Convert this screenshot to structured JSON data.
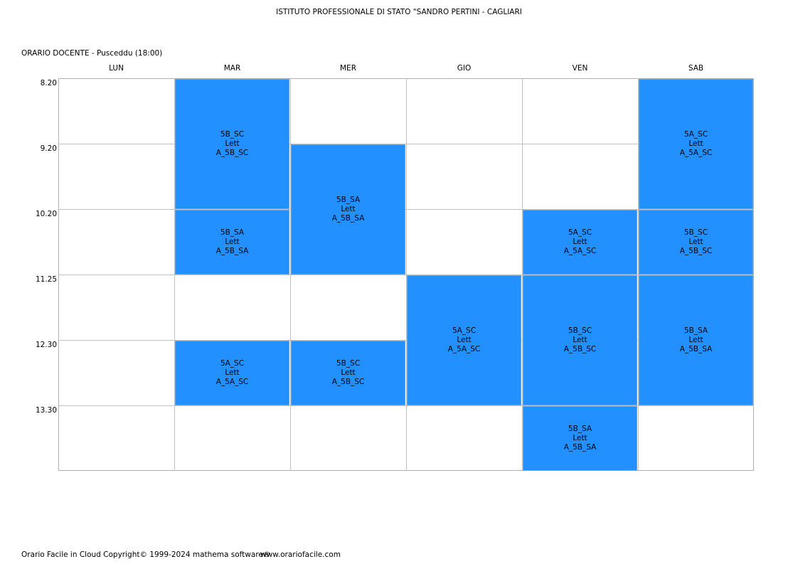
{
  "header": {
    "school": "ISTITUTO PROFESSIONALE DI STATO \"SANDRO PERTINI - CAGLIARI",
    "title": "ORARIO DOCENTE   -   Pusceddu  (18:00)"
  },
  "days": [
    "LUN",
    "MAR",
    "MER",
    "GIO",
    "VEN",
    "SAB"
  ],
  "times": [
    "8.20",
    "9.20",
    "10.20",
    "11.25",
    "12.30",
    "13.30"
  ],
  "lessons": [
    {
      "day": 1,
      "start": 0,
      "span": 2,
      "class": "5B_SC",
      "subject": "Lett",
      "room": "A_5B_SC"
    },
    {
      "day": 1,
      "start": 2,
      "span": 1,
      "class": "5B_SA",
      "subject": "Lett",
      "room": "A_5B_SA"
    },
    {
      "day": 1,
      "start": 4,
      "span": 1,
      "class": "5A_SC",
      "subject": "Lett",
      "room": "A_5A_SC"
    },
    {
      "day": 2,
      "start": 1,
      "span": 2,
      "class": "5B_SA",
      "subject": "Lett",
      "room": "A_5B_SA"
    },
    {
      "day": 2,
      "start": 4,
      "span": 1,
      "class": "5B_SC",
      "subject": "Lett",
      "room": "A_5B_SC"
    },
    {
      "day": 3,
      "start": 3,
      "span": 2,
      "class": "5A_SC",
      "subject": "Lett",
      "room": "A_5A_SC"
    },
    {
      "day": 4,
      "start": 2,
      "span": 1,
      "class": "5A_SC",
      "subject": "Lett",
      "room": "A_5A_SC"
    },
    {
      "day": 4,
      "start": 3,
      "span": 2,
      "class": "5B_SC",
      "subject": "Lett",
      "room": "A_5B_SC"
    },
    {
      "day": 4,
      "start": 5,
      "span": 1,
      "class": "5B_SA",
      "subject": "Lett",
      "room": "A_5B_SA"
    },
    {
      "day": 5,
      "start": 0,
      "span": 2,
      "class": "5A_SC",
      "subject": "Lett",
      "room": "A_5A_SC"
    },
    {
      "day": 5,
      "start": 2,
      "span": 1,
      "class": "5B_SC",
      "subject": "Lett",
      "room": "A_5B_SC"
    },
    {
      "day": 5,
      "start": 3,
      "span": 2,
      "class": "5B_SA",
      "subject": "Lett",
      "room": "A_5B_SA"
    }
  ],
  "colors": {
    "lesson": "#2390ff"
  },
  "footer": {
    "copyright": "Orario Facile in Cloud  Copyright© 1999-2024 mathema software®",
    "url": "www.orariofacile.com"
  }
}
